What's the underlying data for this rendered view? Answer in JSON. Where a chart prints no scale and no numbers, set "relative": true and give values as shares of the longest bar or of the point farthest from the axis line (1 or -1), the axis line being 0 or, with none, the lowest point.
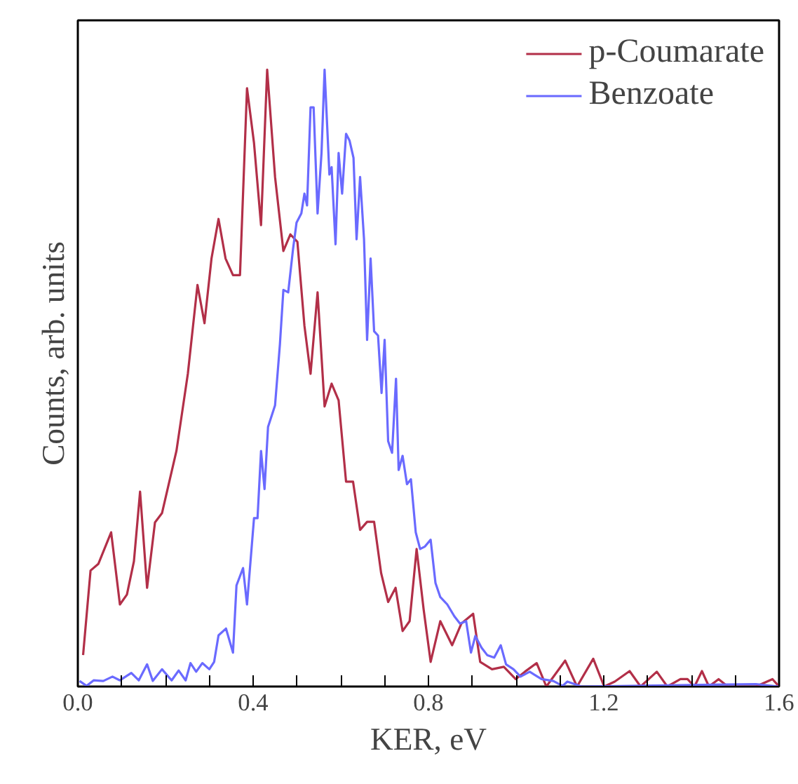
{
  "chart_data": {
    "type": "line",
    "xlabel": "KER, eV",
    "ylabel": "Counts, arb. units",
    "relative": true,
    "legend": "top right",
    "grid": false,
    "xlim": [
      0,
      1.6
    ],
    "xticks": [
      {
        "value": 0,
        "label": "0.0"
      },
      {
        "value": 0.1,
        "label": null
      },
      {
        "value": 0.2,
        "label": null
      },
      {
        "value": 0.3,
        "label": null
      },
      0.4,
      {
        "value": 0.5,
        "label": null
      },
      {
        "value": 0.6,
        "label": null
      },
      {
        "value": 0.7,
        "label": null
      },
      0.8,
      {
        "value": 0.9,
        "label": null
      },
      {
        "value": 1.0,
        "label": null
      },
      {
        "value": 1.1,
        "label": null
      },
      1.2,
      {
        "value": 1.3,
        "label": null
      },
      {
        "value": 1.4,
        "label": null
      },
      {
        "value": 1.5,
        "label": null
      },
      1.6
    ],
    "series": [
      {
        "name": "p-Coumarate",
        "color": "#b22f48",
        "x": [
          0.012,
          0.029,
          0.047,
          0.076,
          0.096,
          0.112,
          0.128,
          0.142,
          0.158,
          0.176,
          0.192,
          0.225,
          0.251,
          0.273,
          0.289,
          0.305,
          0.321,
          0.337,
          0.354,
          0.37,
          0.386,
          0.402,
          0.418,
          0.432,
          0.45,
          0.469,
          0.485,
          0.501,
          0.517,
          0.531,
          0.547,
          0.563,
          0.579,
          0.595,
          0.612,
          0.628,
          0.644,
          0.66,
          0.676,
          0.692,
          0.708,
          0.725,
          0.741,
          0.757,
          0.773,
          0.789,
          0.805,
          0.827,
          0.854,
          0.875,
          0.902,
          0.918,
          0.945,
          0.972,
          0.999,
          1.02,
          1.047,
          1.069,
          1.112,
          1.139,
          1.176,
          1.201,
          1.225,
          1.259,
          1.284,
          1.321,
          1.345,
          1.375,
          1.391,
          1.407,
          1.424,
          1.44,
          1.462,
          1.483,
          1.547,
          1.585,
          1.6
        ],
        "values": [
          0.051,
          0.188,
          0.199,
          0.25,
          0.133,
          0.149,
          0.203,
          0.316,
          0.16,
          0.266,
          0.281,
          0.382,
          0.507,
          0.651,
          0.589,
          0.694,
          0.758,
          0.694,
          0.667,
          0.667,
          0.97,
          0.881,
          0.748,
          1,
          0.826,
          0.706,
          0.733,
          0.721,
          0.585,
          0.507,
          0.639,
          0.454,
          0.491,
          0.464,
          0.332,
          0.332,
          0.254,
          0.267,
          0.267,
          0.184,
          0.137,
          0.16,
          0.09,
          0.106,
          0.223,
          0.125,
          0.04,
          0.106,
          0.067,
          0.102,
          0.118,
          0.04,
          0.028,
          0.032,
          0.012,
          0.024,
          0.038,
          0,
          0.042,
          0,
          0.045,
          0,
          0.008,
          0.025,
          0,
          0.024,
          0,
          0.012,
          0.012,
          0,
          0.025,
          0,
          0.012,
          0,
          0,
          0.012,
          0
        ]
      },
      {
        "name": "Benzoate",
        "color": "#6a6aff",
        "x": [
          0.004,
          0.02,
          0.036,
          0.058,
          0.079,
          0.096,
          0.122,
          0.139,
          0.158,
          0.171,
          0.192,
          0.214,
          0.23,
          0.246,
          0.257,
          0.27,
          0.284,
          0.3,
          0.311,
          0.321,
          0.338,
          0.354,
          0.362,
          0.377,
          0.386,
          0.402,
          0.41,
          0.418,
          0.426,
          0.434,
          0.45,
          0.461,
          0.469,
          0.48,
          0.491,
          0.499,
          0.51,
          0.517,
          0.523,
          0.531,
          0.538,
          0.547,
          0.556,
          0.563,
          0.574,
          0.579,
          0.588,
          0.595,
          0.603,
          0.612,
          0.62,
          0.629,
          0.636,
          0.644,
          0.653,
          0.66,
          0.668,
          0.676,
          0.685,
          0.693,
          0.7,
          0.708,
          0.717,
          0.726,
          0.732,
          0.741,
          0.751,
          0.76,
          0.771,
          0.781,
          0.792,
          0.805,
          0.816,
          0.827,
          0.843,
          0.859,
          0.872,
          0.886,
          0.897,
          0.907,
          0.921,
          0.934,
          0.95,
          0.965,
          0.977,
          0.994,
          1.01,
          1.031,
          1.058,
          1.085,
          1.106,
          1.117,
          1.149,
          1.547,
          1.6
        ],
        "values": [
          0.009,
          0.001,
          0.01,
          0.009,
          0.016,
          0.01,
          0.022,
          0.01,
          0.036,
          0.009,
          0.028,
          0.01,
          0.026,
          0.01,
          0.038,
          0.024,
          0.038,
          0.028,
          0.04,
          0.083,
          0.094,
          0.055,
          0.164,
          0.192,
          0.133,
          0.273,
          0.273,
          0.382,
          0.32,
          0.421,
          0.456,
          0.554,
          0.643,
          0.639,
          0.709,
          0.752,
          0.767,
          0.799,
          0.78,
          0.939,
          0.939,
          0.767,
          0.865,
          1,
          0.83,
          0.842,
          0.717,
          0.865,
          0.799,
          0.896,
          0.885,
          0.857,
          0.725,
          0.826,
          0.725,
          0.562,
          0.694,
          0.576,
          0.569,
          0.476,
          0.562,
          0.398,
          0.379,
          0.499,
          0.351,
          0.374,
          0.328,
          0.336,
          0.25,
          0.223,
          0.227,
          0.238,
          0.168,
          0.145,
          0.133,
          0.114,
          0.102,
          0.106,
          0.055,
          0.082,
          0.063,
          0.051,
          0.047,
          0.067,
          0.036,
          0.028,
          0.016,
          0.024,
          0.012,
          0.009,
          0.001,
          0.008,
          0,
          0.004,
          0
        ]
      }
    ]
  }
}
